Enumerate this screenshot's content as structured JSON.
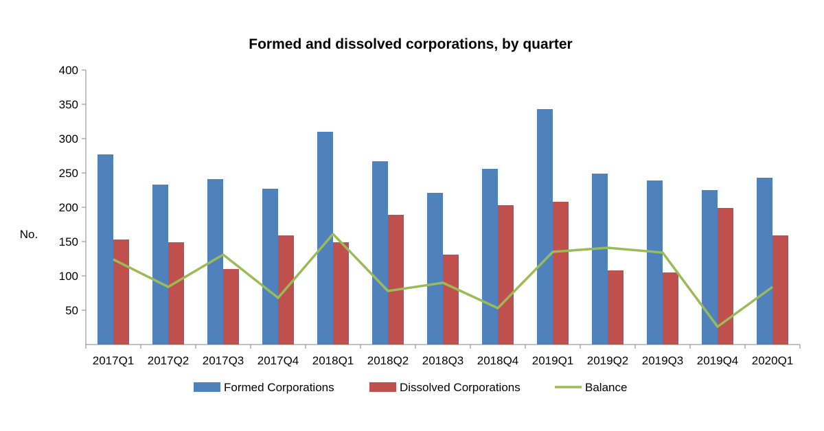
{
  "chart_data": {
    "type": "bar",
    "title": "Formed and dissolved corporations, by quarter",
    "ylabel": "No.",
    "xlabel": "",
    "ylim": [
      0,
      400
    ],
    "yticks": [
      50,
      100,
      150,
      200,
      250,
      300,
      350,
      400
    ],
    "grid": false,
    "legend_position": "bottom",
    "categories": [
      "2017Q1",
      "2017Q2",
      "2017Q3",
      "2017Q4",
      "2018Q1",
      "2018Q2",
      "2018Q3",
      "2018Q4",
      "2019Q1",
      "2019Q2",
      "2019Q3",
      "2019Q4",
      "2020Q1"
    ],
    "series": [
      {
        "name": "Formed Corporations",
        "kind": "bar",
        "color": "#4F81BD",
        "values": [
          277,
          233,
          241,
          227,
          310,
          267,
          221,
          256,
          343,
          249,
          239,
          225,
          243
        ]
      },
      {
        "name": "Dissolved Corporations",
        "kind": "bar",
        "color": "#C0504D",
        "values": [
          153,
          149,
          110,
          159,
          149,
          189,
          131,
          203,
          208,
          108,
          105,
          199,
          159
        ]
      },
      {
        "name": "Balance",
        "kind": "line",
        "color": "#9BBB59",
        "values": [
          124,
          84,
          131,
          68,
          161,
          78,
          90,
          53,
          135,
          141,
          134,
          26,
          84
        ]
      }
    ]
  }
}
